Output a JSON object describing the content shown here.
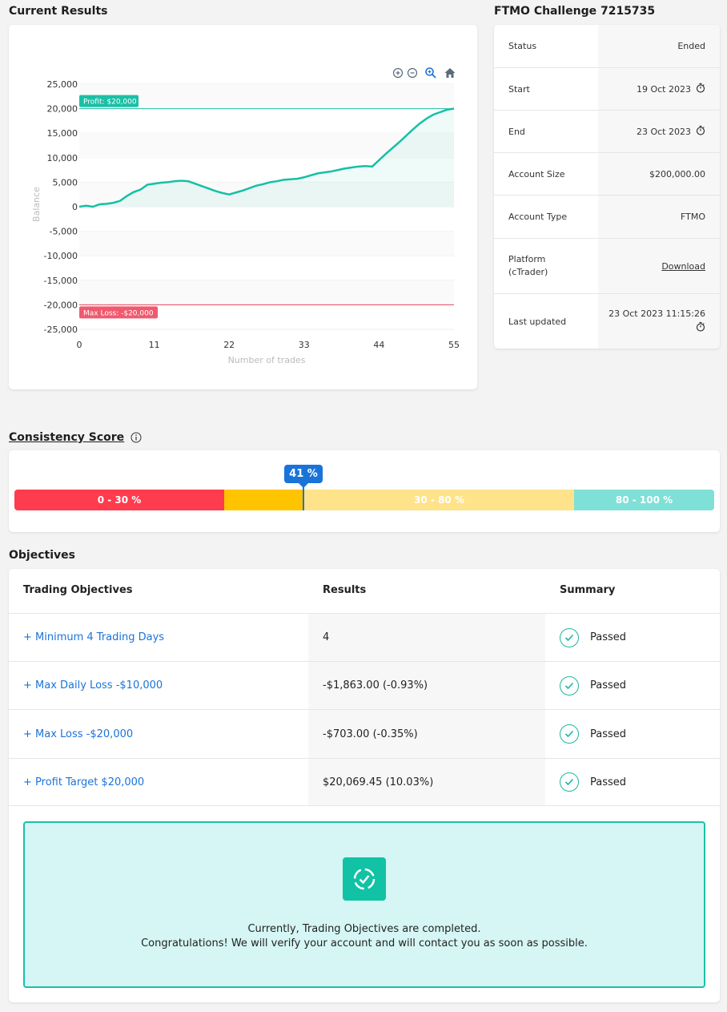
{
  "current_results": {
    "title": "Current Results",
    "toolbar": {
      "zoom_in": "zoom-in-icon",
      "zoom_out": "zoom-out-icon",
      "magnify": "magnify-icon",
      "home": "home-icon"
    }
  },
  "chart_data": {
    "type": "area",
    "xlabel": "Number of trades",
    "ylabel": "Balance",
    "xlim": [
      0,
      55
    ],
    "ylim": [
      -25000,
      25000
    ],
    "xticks": [
      "0",
      "11",
      "22",
      "33",
      "44",
      "55"
    ],
    "yticks": [
      "25,000",
      "20,000",
      "15,000",
      "10,000",
      "5,000",
      "0",
      "-5,000",
      "-10,000",
      "-15,000",
      "-20,000",
      "-25,000"
    ],
    "grid": true,
    "profit_line": {
      "value": 20000,
      "label": "Profit: $20,000",
      "color": "#1bbfa5"
    },
    "max_loss_line": {
      "value": -20000,
      "label": "Max Loss: -$20,000",
      "color": "#e5485f"
    },
    "series": [
      {
        "color": "#14c0a5",
        "x": [
          0,
          1,
          2,
          3,
          4,
          5,
          6,
          7,
          8,
          9,
          10,
          11,
          12,
          13,
          14,
          15,
          16,
          17,
          18,
          19,
          20,
          21,
          22,
          23,
          24,
          25,
          26,
          27,
          28,
          29,
          30,
          31,
          32,
          33,
          34,
          35,
          36,
          37,
          38,
          39,
          40,
          41,
          42,
          43,
          44,
          45,
          46,
          47,
          48,
          49,
          50,
          51,
          52,
          53,
          54,
          55
        ],
        "y": [
          0,
          200,
          0,
          500,
          600,
          800,
          1200,
          2200,
          3000,
          3500,
          4500,
          4700,
          4900,
          5000,
          5200,
          5300,
          5200,
          4700,
          4200,
          3700,
          3200,
          2800,
          2500,
          2900,
          3300,
          3800,
          4300,
          4600,
          5000,
          5200,
          5500,
          5600,
          5700,
          6000,
          6400,
          6800,
          7000,
          7200,
          7500,
          7800,
          8000,
          8200,
          8300,
          8200,
          9500,
          10800,
          12000,
          13200,
          14500,
          15800,
          17000,
          18000,
          18800,
          19300,
          19800,
          20000
        ]
      }
    ]
  },
  "account": {
    "title": "FTMO Challenge 7215735",
    "rows": [
      {
        "label": "Status",
        "value": "Ended"
      },
      {
        "label": "Start",
        "value": "19 Oct 2023"
      },
      {
        "label": "End",
        "value": "23 Oct 2023"
      },
      {
        "label": "Account Size",
        "value": "$200,000.00"
      },
      {
        "label": "Account Type",
        "value": "FTMO"
      },
      {
        "label": "Platform",
        "label2": "(cTrader)",
        "value": "Download"
      },
      {
        "label": "Last updated",
        "value": "23 Oct 2023 11:15:26"
      }
    ]
  },
  "consistency": {
    "title": "Consistency Score",
    "score_label": "41 %",
    "score": 41,
    "segments": [
      {
        "label": "0 - 30 %",
        "color": "#ff3b4e"
      },
      {
        "label": "",
        "color": "#ffc400"
      },
      {
        "label": "30 - 80 %",
        "color": "#ffe38a"
      },
      {
        "label": "80 - 100 %",
        "color": "#7fe0d7"
      }
    ]
  },
  "objectives": {
    "title": "Objectives",
    "headers": {
      "objective": "Trading Objectives",
      "results": "Results",
      "summary": "Summary"
    },
    "rows": [
      {
        "objective": "+ Minimum 4 Trading Days",
        "result": "4",
        "summary": "Passed"
      },
      {
        "objective": "+ Max Daily Loss -$10,000",
        "result": "-$1,863.00 (-0.93%)",
        "summary": "Passed"
      },
      {
        "objective": "+ Max Loss -$20,000",
        "result": "-$703.00 (-0.35%)",
        "summary": "Passed"
      },
      {
        "objective": "+ Profit Target $20,000",
        "result": "$20,069.45 (10.03%)",
        "summary": "Passed"
      }
    ],
    "completed_line1": "Currently, Trading Objectives are completed.",
    "completed_line2": "Congratulations! We will verify your account and will contact you as soon as possible."
  }
}
